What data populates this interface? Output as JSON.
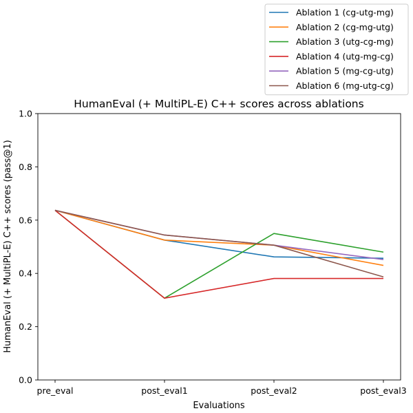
{
  "chart_data": {
    "type": "line",
    "title": "HumanEval (+ MultiPL-E) C++ scores across ablations",
    "xlabel": "Evaluations",
    "ylabel": "HumanEval (+ MultiPL-E) C++ scores (pass@1)",
    "categories": [
      "pre_eval",
      "post_eval1",
      "post_eval2",
      "post_eval3"
    ],
    "ylim": [
      0.0,
      1.0
    ],
    "yticks": [
      "0.0",
      "0.2",
      "0.4",
      "0.6",
      "0.8",
      "1.0"
    ],
    "grid": false,
    "legend_position": "top-right, outside plot",
    "series": [
      {
        "name": "Ablation 1 (cg-utg-mg)",
        "color": "#1f77b4",
        "values": [
          0.637,
          0.525,
          0.462,
          0.457
        ]
      },
      {
        "name": "Ablation 2 (cg-mg-utg)",
        "color": "#ff7f0e",
        "values": [
          0.637,
          0.525,
          0.506,
          0.43
        ]
      },
      {
        "name": "Ablation 3 (utg-cg-mg)",
        "color": "#2ca02c",
        "values": [
          0.637,
          0.307,
          0.55,
          0.48
        ]
      },
      {
        "name": "Ablation 4 (utg-mg-cg)",
        "color": "#d62728",
        "values": [
          0.637,
          0.307,
          0.381,
          0.381
        ]
      },
      {
        "name": "Ablation 5 (mg-cg-utg)",
        "color": "#9467bd",
        "values": [
          0.637,
          0.544,
          0.506,
          0.452
        ]
      },
      {
        "name": "Ablation 6 (mg-utg-cg)",
        "color": "#8c564b",
        "values": [
          0.637,
          0.544,
          0.506,
          0.387
        ]
      }
    ]
  }
}
